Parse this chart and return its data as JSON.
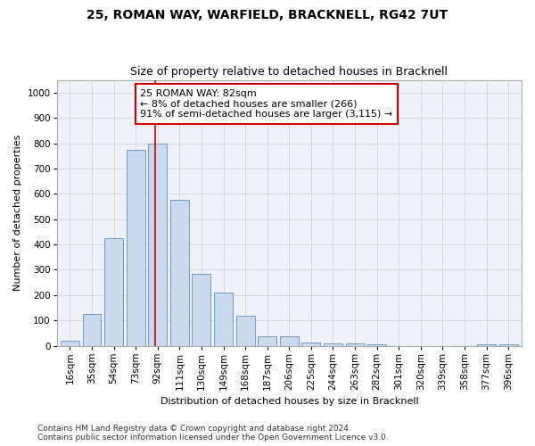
{
  "title": "25, ROMAN WAY, WARFIELD, BRACKNELL, RG42 7UT",
  "subtitle": "Size of property relative to detached houses in Bracknell",
  "xlabel": "Distribution of detached houses by size in Bracknell",
  "ylabel": "Number of detached properties",
  "categories": [
    "16sqm",
    "35sqm",
    "54sqm",
    "73sqm",
    "92sqm",
    "111sqm",
    "130sqm",
    "149sqm",
    "168sqm",
    "187sqm",
    "206sqm",
    "225sqm",
    "244sqm",
    "263sqm",
    "282sqm",
    "301sqm",
    "320sqm",
    "339sqm",
    "358sqm",
    "377sqm",
    "396sqm"
  ],
  "values": [
    18,
    125,
    425,
    775,
    800,
    575,
    285,
    210,
    120,
    38,
    38,
    12,
    10,
    8,
    5,
    0,
    0,
    0,
    0,
    5,
    5
  ],
  "bar_color": "#c9d9ee",
  "bar_edge_color": "#6090bb",
  "highlight_line_color": "#cc0000",
  "annotation_text": "25 ROMAN WAY: 82sqm\n← 8% of detached houses are smaller (266)\n91% of semi-detached houses are larger (3,115) →",
  "annotation_box_color": "#ffffff",
  "annotation_box_edge": "#cc0000",
  "ylim": [
    0,
    1050
  ],
  "yticks": [
    0,
    100,
    200,
    300,
    400,
    500,
    600,
    700,
    800,
    900,
    1000
  ],
  "grid_color": "#cccccc",
  "background_color": "#eef2f8",
  "footnote": "Contains HM Land Registry data © Crown copyright and database right 2024.\nContains public sector information licensed under the Open Government Licence v3.0.",
  "title_fontsize": 10,
  "subtitle_fontsize": 9,
  "axis_fontsize": 8,
  "tick_fontsize": 7.5,
  "annotation_fontsize": 8,
  "footnote_fontsize": 6.5
}
